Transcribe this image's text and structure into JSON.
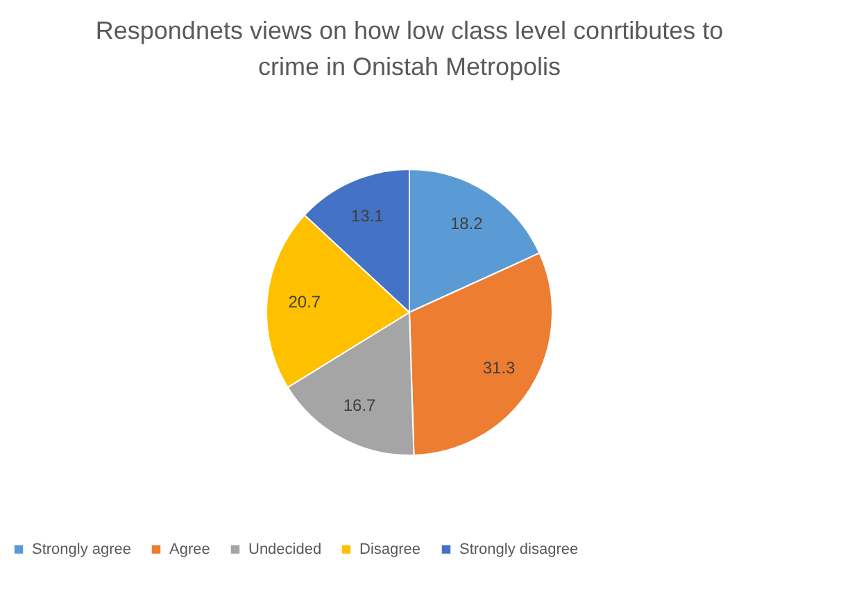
{
  "chart_data": {
    "type": "pie",
    "title": "Respondnets views on how low class level conrtibutes to crime in Onistah Metropolis",
    "categories": [
      "Strongly agree",
      "Agree",
      "Undecided",
      "Disagree",
      "Strongly disagree"
    ],
    "values": [
      18.2,
      31.3,
      16.7,
      20.7,
      13.1
    ],
    "colors": [
      "#5b9bd5",
      "#ed7d31",
      "#a5a5a5",
      "#ffc000",
      "#4472c4"
    ],
    "data_labels": true,
    "legend": "bottom"
  }
}
